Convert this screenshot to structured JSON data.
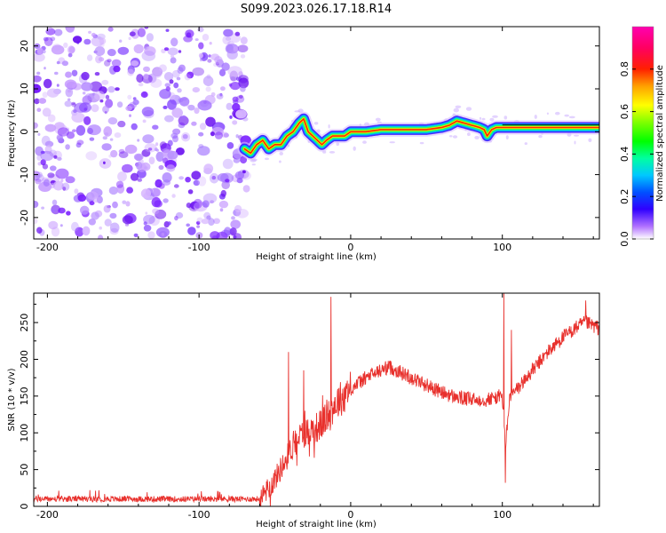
{
  "figure": {
    "title": "S099.2023.026.17.18.R14"
  },
  "chart_data": [
    {
      "type": "heatmap",
      "xlabel": "Height of straight line (km)",
      "ylabel": "Frequency (Hz)",
      "xlim": [
        -209,
        164
      ],
      "ylim": [
        -25,
        24.5
      ],
      "xticks": [
        -200,
        -100,
        0,
        100
      ],
      "yticks": [
        -20,
        -10,
        0,
        10,
        20
      ],
      "ytick_labels": [
        "-20",
        "-10",
        "0",
        "10",
        "20"
      ],
      "colorbar": {
        "label": "Normalized spectral amplitude",
        "range": [
          0,
          1
        ],
        "ticks": [
          0.0,
          0.2,
          0.4,
          0.6,
          0.8
        ],
        "tick_labels": [
          "0.0",
          "0.2",
          "0.4",
          "0.6",
          "0.8"
        ],
        "colormap": "gist_ncar-like (white-violet-blue-cyan-green-yellow-red-magenta)"
      },
      "noise_region_x": [
        -209,
        -70
      ],
      "ridge": {
        "x": [
          -70,
          -66,
          -62,
          -58,
          -54,
          -50,
          -46,
          -42,
          -38,
          -34,
          -31,
          -28,
          -25,
          -22,
          -19,
          -16,
          -12,
          -8,
          -4,
          0,
          10,
          20,
          30,
          40,
          50,
          60,
          65,
          70,
          75,
          80,
          85,
          88,
          90,
          93,
          96,
          100,
          110,
          120,
          130,
          140,
          150,
          164
        ],
        "y": [
          -4,
          -5,
          -3,
          -2,
          -4,
          -3,
          -3,
          -1,
          0,
          2,
          3,
          0,
          -1,
          -2,
          -3,
          -2,
          -1,
          -1,
          -1,
          0,
          0,
          0.5,
          0.5,
          0.5,
          0.5,
          1,
          1.5,
          2.5,
          2,
          1.5,
          1,
          0.5,
          -1,
          0.5,
          1,
          1,
          1,
          1,
          1,
          1,
          1,
          1
        ]
      },
      "grid": false
    },
    {
      "type": "line",
      "xlabel": "Height of straight line (km)",
      "ylabel": "SNR (10 * v/v)",
      "xlim": [
        -209,
        164
      ],
      "ylim": [
        0,
        290
      ],
      "xticks": [
        -200,
        -100,
        0,
        100
      ],
      "yticks": [
        0,
        50,
        100,
        150,
        200,
        250
      ],
      "color": "#e8302c",
      "envelope": {
        "x": [
          -209,
          -150,
          -100,
          -60,
          -52,
          -45,
          -40,
          -35,
          -30,
          -25,
          -20,
          -15,
          -10,
          -5,
          0,
          10,
          20,
          25,
          30,
          40,
          50,
          60,
          70,
          80,
          90,
          95,
          100,
          102,
          105,
          110,
          120,
          130,
          140,
          150,
          155,
          164
        ],
        "y": [
          10,
          10,
          10,
          10,
          30,
          55,
          75,
          95,
          100,
          105,
          110,
          125,
          140,
          150,
          160,
          175,
          185,
          190,
          185,
          175,
          165,
          155,
          148,
          145,
          145,
          148,
          150,
          80,
          150,
          160,
          185,
          210,
          230,
          245,
          250,
          242
        ]
      },
      "spikes": [
        {
          "x": -41,
          "y": 210
        },
        {
          "x": -31,
          "y": 185
        },
        {
          "x": -13,
          "y": 285
        },
        {
          "x": 101,
          "y": 290
        },
        {
          "x": 102,
          "y": 32
        },
        {
          "x": 106,
          "y": 240
        },
        {
          "x": 155,
          "y": 280
        }
      ],
      "grid": false
    }
  ]
}
